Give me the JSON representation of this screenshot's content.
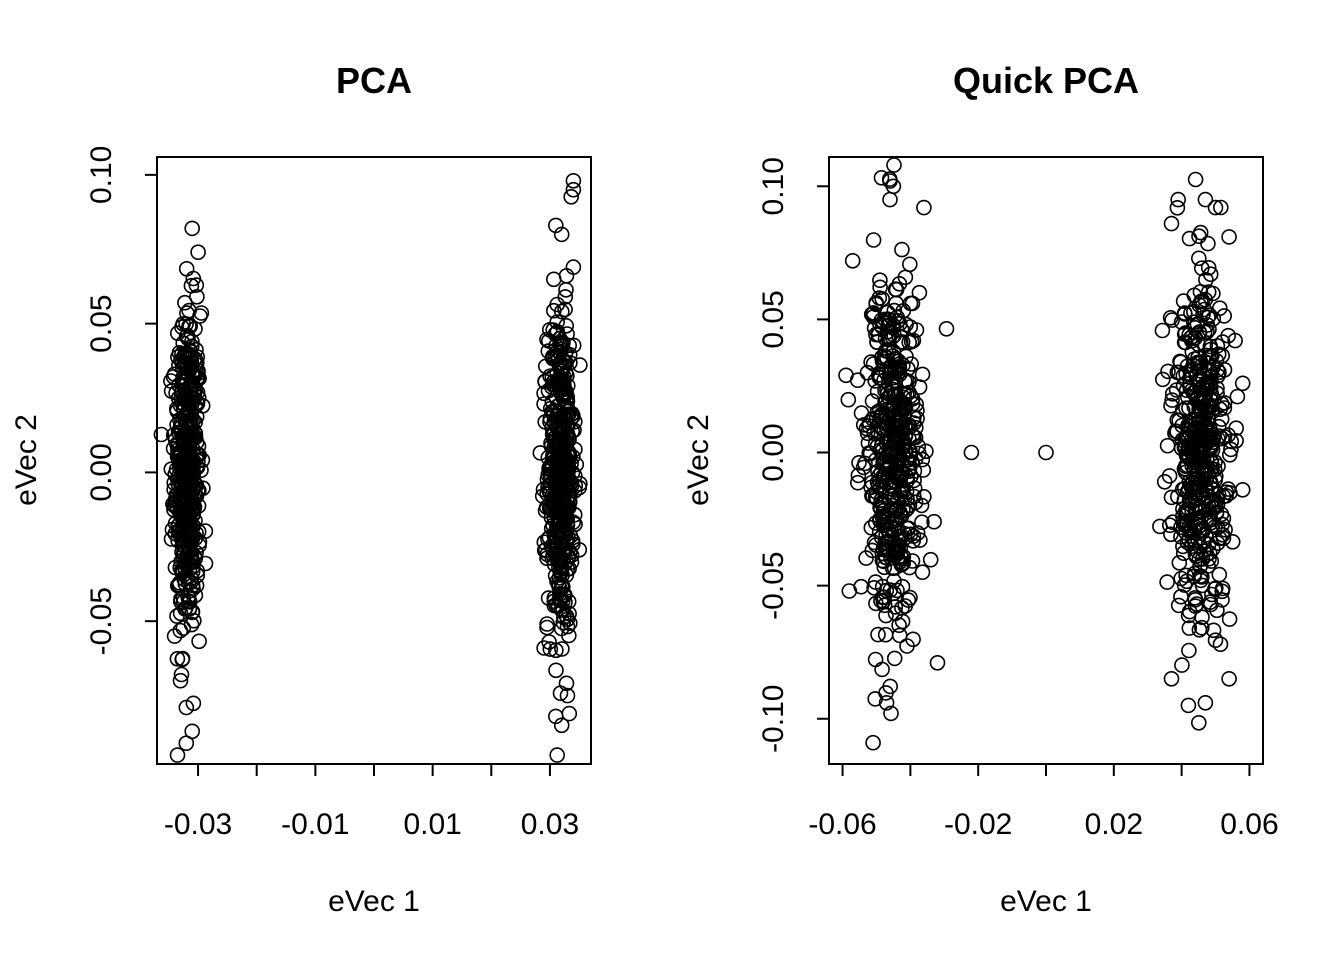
{
  "chart_data": [
    {
      "type": "scatter",
      "title": "PCA",
      "xlabel": "eVec 1",
      "ylabel": "eVec 2",
      "xlim": [
        -0.037,
        0.037
      ],
      "ylim": [
        -0.098,
        0.106
      ],
      "xticks": [
        -0.03,
        -0.02,
        -0.01,
        0.0,
        0.01,
        0.02,
        0.03
      ],
      "xtick_labels": [
        "-0.03",
        "",
        "-0.01",
        "",
        "0.01",
        "",
        "0.03"
      ],
      "yticks": [
        -0.05,
        0.0,
        0.05,
        0.1
      ],
      "ytick_labels": [
        "-0.05",
        "0.00",
        "0.05",
        "0.10"
      ],
      "grid": false,
      "clusters": [
        {
          "x_center": -0.0318,
          "x_sd": 0.0011,
          "y_sd": 0.027,
          "n": 500
        },
        {
          "x_center": 0.0318,
          "x_sd": 0.0011,
          "y_sd": 0.027,
          "n": 500
        }
      ],
      "notable_points": [
        {
          "x": -0.031,
          "y": 0.082
        },
        {
          "x": -0.03,
          "y": 0.074
        },
        {
          "x": -0.034,
          "y": 0.033
        },
        {
          "x": -0.033,
          "y": -0.07
        },
        {
          "x": -0.032,
          "y": -0.079
        },
        {
          "x": -0.031,
          "y": -0.087
        },
        {
          "x": -0.032,
          "y": -0.091
        },
        {
          "x": -0.034,
          "y": -0.055
        },
        {
          "x": 0.034,
          "y": 0.098
        },
        {
          "x": 0.034,
          "y": 0.095
        },
        {
          "x": 0.031,
          "y": 0.083
        },
        {
          "x": 0.032,
          "y": 0.08
        },
        {
          "x": 0.034,
          "y": 0.069
        },
        {
          "x": 0.029,
          "y": 0.023
        },
        {
          "x": 0.031,
          "y": -0.082
        },
        {
          "x": 0.032,
          "y": -0.085
        },
        {
          "x": 0.033,
          "y": -0.075
        },
        {
          "x": 0.029,
          "y": -0.059
        },
        {
          "x": 0.035,
          "y": -0.026
        }
      ]
    },
    {
      "type": "scatter",
      "title": "Quick PCA",
      "xlabel": "eVec 1",
      "ylabel": "eVec 2",
      "xlim": [
        -0.064,
        0.064
      ],
      "ylim": [
        -0.117,
        0.111
      ],
      "xticks": [
        -0.06,
        -0.04,
        -0.02,
        0.0,
        0.02,
        0.04,
        0.06
      ],
      "xtick_labels": [
        "-0.06",
        "",
        "-0.02",
        "",
        "0.02",
        "",
        "0.06"
      ],
      "yticks": [
        -0.1,
        -0.05,
        0.0,
        0.05,
        0.1
      ],
      "ytick_labels": [
        "-0.10",
        "-0.05",
        "0.00",
        "0.05",
        "0.10"
      ],
      "grid": false,
      "clusters": [
        {
          "x_center": -0.0455,
          "x_sd": 0.004,
          "y_sd": 0.033,
          "n": 500
        },
        {
          "x_center": 0.0455,
          "x_sd": 0.004,
          "y_sd": 0.033,
          "n": 500
        }
      ],
      "notable_points": [
        {
          "x": -0.022,
          "y": 0.0
        },
        {
          "x": 0.0,
          "y": 0.0
        },
        {
          "x": -0.046,
          "y": 0.102
        },
        {
          "x": -0.045,
          "y": 0.1
        },
        {
          "x": -0.046,
          "y": 0.095
        },
        {
          "x": -0.036,
          "y": 0.092
        },
        {
          "x": -0.059,
          "y": 0.029
        },
        {
          "x": -0.058,
          "y": -0.052
        },
        {
          "x": -0.051,
          "y": -0.109
        },
        {
          "x": -0.047,
          "y": -0.094
        },
        {
          "x": -0.032,
          "y": -0.079
        },
        {
          "x": -0.033,
          "y": -0.026
        },
        {
          "x": -0.057,
          "y": 0.072
        },
        {
          "x": 0.039,
          "y": 0.095
        },
        {
          "x": 0.047,
          "y": 0.095
        },
        {
          "x": 0.05,
          "y": 0.092
        },
        {
          "x": 0.037,
          "y": 0.086
        },
        {
          "x": 0.054,
          "y": 0.081
        },
        {
          "x": 0.058,
          "y": 0.026
        },
        {
          "x": 0.058,
          "y": -0.014
        },
        {
          "x": 0.054,
          "y": -0.085
        },
        {
          "x": 0.042,
          "y": -0.095
        },
        {
          "x": 0.047,
          "y": -0.094
        },
        {
          "x": 0.037,
          "y": -0.085
        },
        {
          "x": 0.035,
          "y": -0.011
        }
      ]
    }
  ]
}
